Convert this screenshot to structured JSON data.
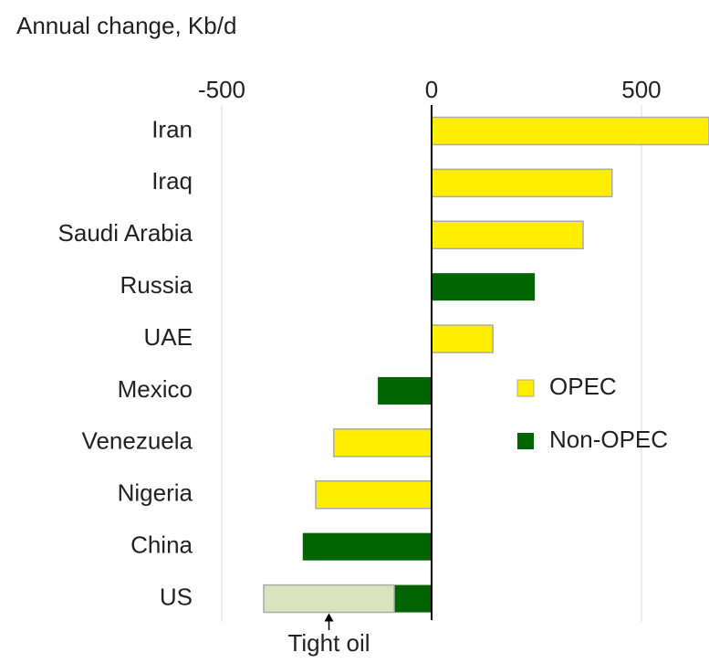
{
  "chart_data": {
    "type": "bar",
    "orientation": "horizontal",
    "stacked": true,
    "title": "Annual change, Kb/d",
    "categories": [
      "Iran",
      "Iraq",
      "Saudi Arabia",
      "Russia",
      "UAE",
      "Mexico",
      "Venezuela",
      "Nigeria",
      "China",
      "US"
    ],
    "series": [
      {
        "name": "OPEC",
        "color": "#ffee00",
        "values": [
          661,
          430,
          361,
          null,
          146,
          null,
          -233,
          -276,
          null,
          null
        ]
      },
      {
        "name": "Non-OPEC",
        "color": "#006400",
        "values": [
          null,
          null,
          null,
          246,
          null,
          -128,
          null,
          null,
          -307,
          -89
        ]
      },
      {
        "name": "Tight oil",
        "color": "#d8e4bc",
        "values": [
          null,
          null,
          null,
          null,
          null,
          null,
          null,
          null,
          null,
          -311
        ]
      }
    ],
    "xlim": [
      -500,
      661
    ],
    "xticks": [
      -500,
      0,
      500
    ],
    "grid": true,
    "legend": "right"
  }
}
